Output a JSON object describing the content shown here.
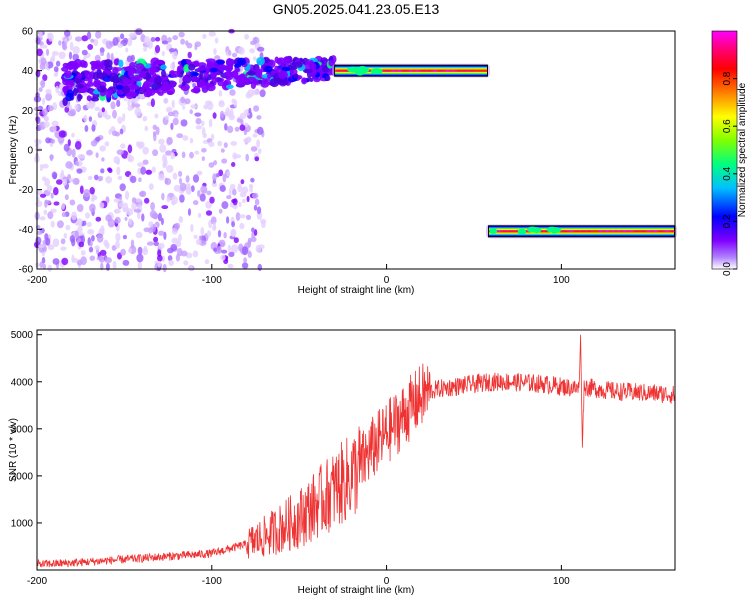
{
  "chart_data": [
    {
      "type": "heatmap",
      "title": "GN05.2025.041.23.05.E13",
      "xlabel": "Height of straight line (km)",
      "ylabel": "Frequency (Hz)",
      "xlim": [
        -200,
        165
      ],
      "ylim": [
        -60,
        60
      ],
      "xticks": [
        -200,
        -100,
        0,
        100
      ],
      "yticks": [
        -60,
        -40,
        -20,
        0,
        20,
        40,
        60
      ],
      "colorbar": {
        "label": "Normalized spectral amplitude",
        "range": [
          0,
          1
        ],
        "ticks": [
          "0.0",
          "0.2",
          "0.4",
          "0.6",
          "0.8"
        ],
        "colors": [
          "#ffffff",
          "#7f00ff",
          "#0000ff",
          "#00bfff",
          "#00ff80",
          "#80ff00",
          "#ffff00",
          "#ff8000",
          "#ff0000",
          "#ff0080",
          "#ff00ff"
        ]
      },
      "features": [
        {
          "name": "scattered speckle",
          "x_range": [
            -200,
            -70
          ],
          "y_range": [
            -60,
            60
          ],
          "amplitude": 0.05
        },
        {
          "name": "upper emission cluster",
          "x_range": [
            -185,
            -30
          ],
          "y_range": [
            25,
            55
          ],
          "amplitude": 0.2
        },
        {
          "name": "upper line",
          "x_range": [
            -30,
            58
          ],
          "y_center": 40,
          "amplitude": 0.9
        },
        {
          "name": "lower line",
          "x_range": [
            58,
            165
          ],
          "y_center": -41,
          "amplitude": 0.9
        }
      ],
      "grid": false
    },
    {
      "type": "line",
      "title": "",
      "xlabel": "Height of straight line (km)",
      "ylabel": "SNR (10 * v/v)",
      "xlim": [
        -200,
        165
      ],
      "ylim": [
        0,
        5100
      ],
      "xticks": [
        -200,
        -100,
        0,
        100
      ],
      "yticks": [
        1000,
        2000,
        3000,
        4000,
        5000
      ],
      "series_color": "#ef3333",
      "series": [
        {
          "x": [
            -200,
            -180,
            -160,
            -140,
            -120,
            -100,
            -90,
            -80,
            -70,
            -60,
            -50,
            -40,
            -30,
            -20,
            -15,
            -10,
            -5,
            0,
            5,
            10,
            15,
            20,
            25,
            30,
            40,
            50,
            60,
            70,
            80,
            90,
            100,
            110,
            111,
            112,
            113,
            120,
            130,
            140,
            150,
            160,
            165
          ],
          "y": [
            120,
            150,
            200,
            250,
            300,
            350,
            450,
            550,
            700,
            900,
            1100,
            1400,
            1700,
            2000,
            2200,
            2500,
            2700,
            2900,
            3100,
            3300,
            3500,
            3700,
            3800,
            3850,
            3900,
            3950,
            4000,
            4000,
            3980,
            3950,
            3900,
            3850,
            5000,
            2600,
            3900,
            3850,
            3800,
            3780,
            3760,
            3740,
            3720
          ]
        }
      ],
      "grid": false
    }
  ]
}
